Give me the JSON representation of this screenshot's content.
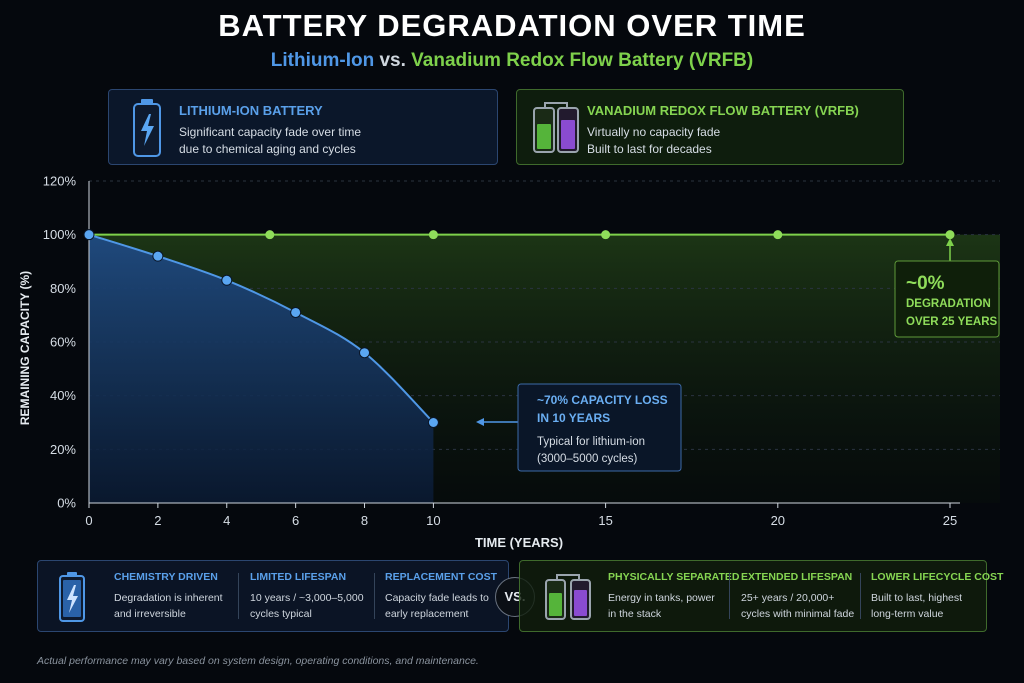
{
  "header": {
    "title": "BATTERY DEGRADATION OVER TIME",
    "subtitle_li": "Lithium-Ion",
    "subtitle_vs": " vs. ",
    "subtitle_vr": "Vanadium Redox Flow Battery (VRFB)"
  },
  "cards": {
    "lithium": {
      "title": "LITHIUM-ION BATTERY",
      "desc1": "Significant capacity fade over time",
      "desc2": "due to chemical aging and cycles"
    },
    "vrfb": {
      "title": "VANADIUM REDOX FLOW BATTERY (VRFB)",
      "desc1": "Virtually no capacity fade",
      "desc2": "Built to last for decades"
    }
  },
  "chart_data": {
    "type": "line",
    "xlabel": "TIME (YEARS)",
    "ylabel": "REMAINING CAPACITY (%)",
    "xlim": [
      0,
      25
    ],
    "ylim": [
      0,
      120
    ],
    "x_ticks": [
      0,
      2,
      4,
      6,
      8,
      10,
      15,
      20,
      25
    ],
    "y_ticks": [
      0,
      20,
      40,
      60,
      80,
      100,
      120
    ],
    "y_tick_labels": [
      "0%",
      "20%",
      "40%",
      "60%",
      "80%",
      "100%",
      "120%"
    ],
    "grid": true,
    "series": [
      {
        "id": "lithium",
        "color": "#4f97e6",
        "x": [
          0,
          2,
          4,
          6,
          8,
          10
        ],
        "y": [
          100,
          92,
          83,
          71,
          56,
          30
        ]
      },
      {
        "id": "vrfb",
        "color": "#7ed14b",
        "x": [
          0,
          5.25,
          10,
          15,
          20,
          25
        ],
        "y": [
          100,
          100,
          100,
          100,
          100,
          100
        ]
      }
    ],
    "annotations": {
      "li_loss_title1": "~70% CAPACITY LOSS",
      "li_loss_title2": "IN 10 YEARS",
      "li_loss_desc1": "Typical for lithium-ion",
      "li_loss_desc2": "(3000–5000 cycles)",
      "vr_big": "~0%",
      "vr_line1": "DEGRADATION",
      "vr_line2": "OVER 25 YEARS"
    }
  },
  "bottom": {
    "lithium": [
      {
        "title": "CHEMISTRY DRIVEN",
        "line1": "Degradation is inherent",
        "line2": "and irreversible"
      },
      {
        "title": "LIMITED LIFESPAN",
        "line1": "10 years / ~3,000–5,000",
        "line2": "cycles typical"
      },
      {
        "title": "REPLACEMENT COST",
        "line1": "Capacity fade leads to",
        "line2": "early replacement"
      }
    ],
    "vs": "VS.",
    "vrfb": [
      {
        "title": "PHYSICALLY SEPARATED",
        "line1": "Energy in tanks, power",
        "line2": "in the stack"
      },
      {
        "title": "EXTENDED LIFESPAN",
        "line1": "25+ years / 20,000+",
        "line2": "cycles with minimal fade"
      },
      {
        "title": "LOWER LIFECYCLE COST",
        "line1": "Built to last, highest",
        "line2": "long-term value"
      }
    ]
  },
  "footnote": "Actual performance may vary based on system design, operating conditions, and maintenance."
}
